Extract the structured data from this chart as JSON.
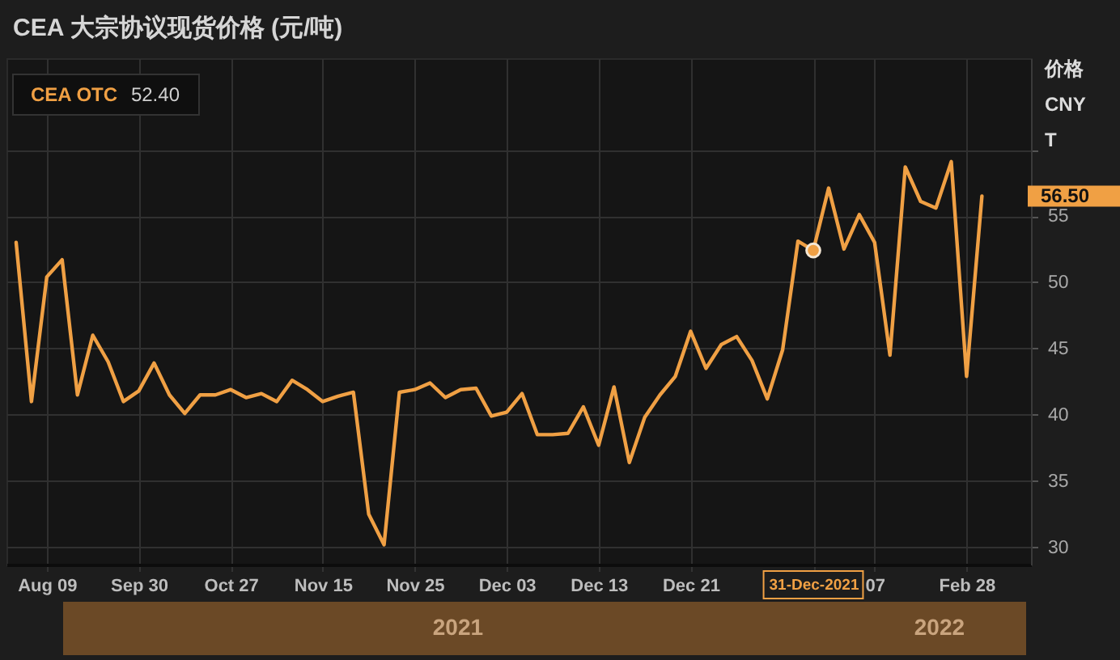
{
  "chart_data": {
    "type": "line",
    "title": "CEA 大宗协议现货价格 (元/吨)",
    "ylabel": "价格\nCNY\nT",
    "categories": [
      null,
      null,
      "Aug 09",
      null,
      null,
      null,
      null,
      null,
      "Sep 30",
      null,
      null,
      null,
      null,
      null,
      "Oct 27",
      null,
      null,
      null,
      null,
      null,
      "Nov 15",
      null,
      null,
      null,
      null,
      null,
      "Nov 25",
      null,
      null,
      null,
      null,
      null,
      "Dec 03",
      null,
      null,
      null,
      null,
      null,
      "Dec 13",
      null,
      null,
      null,
      null,
      null,
      "Dec 21",
      null,
      null,
      null,
      null,
      null,
      null,
      null,
      "31-Dec-2021",
      null,
      null,
      null,
      "07",
      null,
      null,
      null,
      null,
      null,
      "Feb 28",
      null
    ],
    "series": [
      {
        "name": "CEA OTC",
        "color": "#f0a044",
        "values": [
          53.0,
          41.0,
          50.4,
          51.7,
          41.5,
          46.0,
          44.0,
          41.0,
          41.8,
          43.9,
          41.5,
          40.1,
          41.5,
          41.5,
          41.9,
          41.3,
          41.6,
          41.0,
          42.6,
          41.9,
          41.0,
          41.4,
          41.7,
          32.5,
          30.2,
          41.7,
          41.9,
          42.4,
          41.3,
          41.9,
          42.0,
          39.9,
          40.2,
          41.6,
          38.5,
          38.5,
          38.6,
          40.6,
          37.7,
          42.1,
          36.4,
          39.8,
          41.5,
          42.9,
          46.3,
          43.5,
          45.3,
          45.9,
          44.1,
          41.2,
          44.9,
          53.1,
          52.4,
          57.1,
          52.5,
          55.1,
          53.0,
          44.5,
          58.7,
          56.1,
          55.6,
          59.1,
          42.9,
          56.5
        ]
      },
      {
        "type": "scatter",
        "color": "#f0a044",
        "x": [
          "31-Dec-2021"
        ],
        "values": [
          52.4
        ]
      }
    ],
    "ylim": [
      28.7,
      66.9
    ],
    "yticks": [
      30,
      35,
      40,
      45,
      50,
      55,
      {
        "value": 60,
        "label": null
      }
    ],
    "grid": true,
    "legend": "top left",
    "annotations": [
      "52.40",
      "56.50",
      "2021",
      "2022"
    ]
  }
}
